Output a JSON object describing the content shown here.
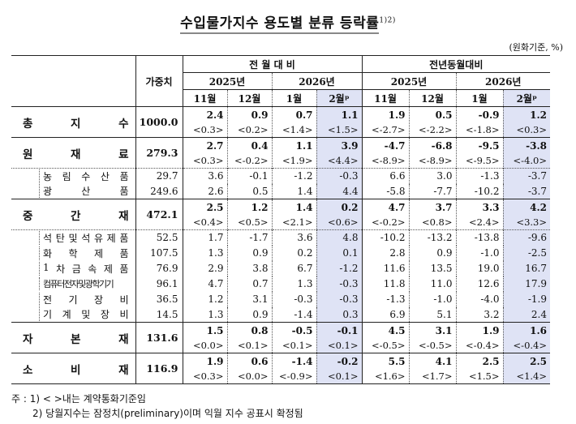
{
  "title": "수입물가지수 용도별 분류 등락률",
  "title_sup": "1)2)",
  "unit": "(원화기준, %)",
  "header": {
    "weight": "가중치",
    "group_mom": "전 월 대 비",
    "group_yoy": "전년동월대비",
    "years": [
      "2025년",
      "2026년",
      "2025년",
      "2026년"
    ],
    "months": [
      "11월",
      "12월",
      "1월",
      "2월ᵖ",
      "11월",
      "12월",
      "1월",
      "2월ᵖ"
    ]
  },
  "highlight_color": "#dfe3f5",
  "rows": [
    {
      "label": [
        "총",
        "지",
        "수"
      ],
      "type": "cat",
      "weight": "1000.0",
      "values": [
        "2.4",
        "0.9",
        "0.7",
        "1.1",
        "1.9",
        "0.5",
        "-0.9",
        "1.2"
      ],
      "contract": [
        "<0.3>",
        "<0.2>",
        "<1.4>",
        "<1.5>",
        "<-2.7>",
        "<-2.2>",
        "<-1.8>",
        "<0.3>"
      ]
    },
    {
      "label": [
        "원",
        "재",
        "료"
      ],
      "type": "cat",
      "weight": "279.3",
      "values": [
        "2.7",
        "0.4",
        "1.1",
        "3.9",
        "-4.7",
        "-6.8",
        "-9.5",
        "-3.8"
      ],
      "contract": [
        "<0.3>",
        "<-0.2>",
        "<1.9>",
        "<4.4>",
        "<-8.9>",
        "<-8.9>",
        "<-9.5>",
        "<-4.0>"
      ]
    },
    {
      "label": [
        "농",
        "림",
        "수",
        "산",
        "품"
      ],
      "type": "sub",
      "weight": "29.7",
      "values": [
        "3.6",
        "-0.1",
        "-1.2",
        "-0.3",
        "6.6",
        "3.0",
        "-1.3",
        "-3.7"
      ]
    },
    {
      "label": [
        "광",
        "산",
        "품"
      ],
      "type": "sub",
      "weight": "249.6",
      "values": [
        "2.6",
        "0.5",
        "1.4",
        "4.4",
        "-5.8",
        "-7.7",
        "-10.2",
        "-3.7"
      ]
    },
    {
      "label": [
        "중",
        "간",
        "재"
      ],
      "type": "cat",
      "weight": "472.1",
      "values": [
        "2.5",
        "1.2",
        "1.4",
        "0.2",
        "4.7",
        "3.7",
        "3.3",
        "4.2"
      ],
      "contract": [
        "<0.4>",
        "<0.5>",
        "<2.1>",
        "<0.6>",
        "<-0.2>",
        "<0.8>",
        "<2.4>",
        "<3.3>"
      ]
    },
    {
      "label": [
        "석",
        "탄",
        "및",
        "석",
        "유",
        "제",
        "품"
      ],
      "type": "sub",
      "weight": "52.5",
      "values": [
        "1.7",
        "-1.7",
        "3.6",
        "4.8",
        "-10.2",
        "-13.2",
        "-13.8",
        "-9.6"
      ]
    },
    {
      "label": [
        "화",
        "학",
        "제",
        "품"
      ],
      "type": "sub",
      "weight": "107.5",
      "values": [
        "1.3",
        "0.9",
        "0.2",
        "0.1",
        "2.8",
        "0.9",
        "-1.0",
        "-2.5"
      ]
    },
    {
      "label": [
        "1",
        "차",
        "금",
        "속",
        "제",
        "품"
      ],
      "type": "sub",
      "weight": "76.9",
      "values": [
        "2.9",
        "3.8",
        "6.7",
        "-1.2",
        "11.6",
        "13.5",
        "19.0",
        "16.7"
      ]
    },
    {
      "label": [
        "컴퓨터전자및광학기기"
      ],
      "type": "sub",
      "tight": true,
      "weight": "96.1",
      "values": [
        "4.7",
        "0.7",
        "1.3",
        "-0.3",
        "11.8",
        "11.0",
        "12.6",
        "17.9"
      ]
    },
    {
      "label": [
        "전",
        "기",
        "장",
        "비"
      ],
      "type": "sub",
      "weight": "36.5",
      "values": [
        "1.2",
        "3.1",
        "-0.3",
        "-0.3",
        "-1.3",
        "-1.0",
        "-4.0",
        "-1.9"
      ]
    },
    {
      "label": [
        "기",
        "계",
        "및",
        "장",
        "비"
      ],
      "type": "sub",
      "weight": "14.5",
      "values": [
        "1.3",
        "0.9",
        "-1.4",
        "0.3",
        "6.9",
        "5.1",
        "3.2",
        "2.4"
      ]
    },
    {
      "label": [
        "자",
        "본",
        "재"
      ],
      "type": "cat",
      "weight": "131.6",
      "values": [
        "1.5",
        "0.8",
        "-0.5",
        "-0.1",
        "4.5",
        "3.1",
        "1.9",
        "1.6"
      ],
      "contract": [
        "<0.0>",
        "<0.1>",
        "<0.1>",
        "<0.1>",
        "<-0.5>",
        "<-0.5>",
        "<-0.4>",
        "<-0.4>"
      ]
    },
    {
      "label": [
        "소",
        "비",
        "재"
      ],
      "type": "cat",
      "weight": "116.9",
      "values": [
        "1.9",
        "0.6",
        "-1.4",
        "-0.2",
        "5.5",
        "4.1",
        "2.5",
        "2.5"
      ],
      "contract": [
        "<0.3>",
        "<0.0>",
        "<-0.9>",
        "<0.1>",
        "<1.6>",
        "<1.7>",
        "<1.5>",
        "<1.4>"
      ]
    }
  ],
  "notes": {
    "prefix": "주 :",
    "n1": "1) < >내는 계약통화기준임",
    "n2": "2) 당월지수는 잠정치(preliminary)이며 익월 지수 공표시 확정됨"
  }
}
